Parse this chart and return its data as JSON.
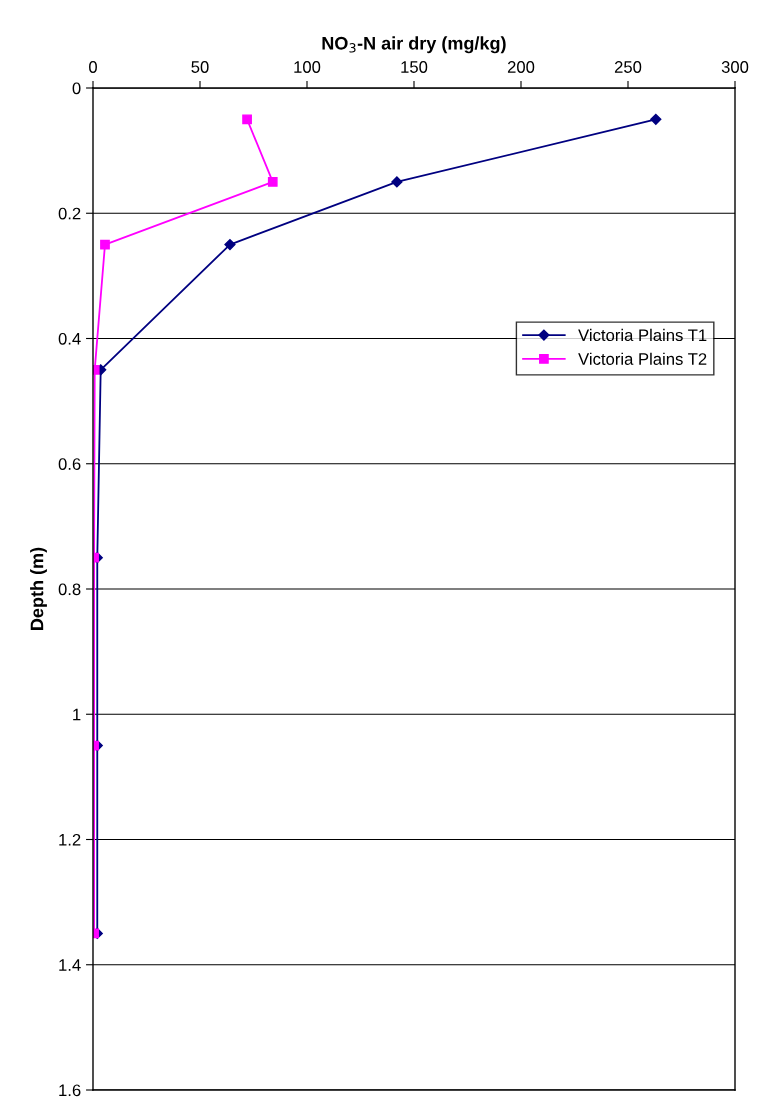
{
  "chart_data": {
    "type": "line",
    "xlabel": "NO$_{3}$-N air dry (mg/kg)",
    "ylabel": "Depth (m)",
    "xlim": [
      0,
      300
    ],
    "xticks": [
      0,
      50,
      100,
      150,
      200,
      250,
      300
    ],
    "ylim": [
      1.6,
      0
    ],
    "yticks": [
      0,
      0.2,
      0.4,
      0.6,
      0.8,
      1,
      1.2,
      1.4,
      1.6
    ],
    "grid": "y",
    "legend": "right",
    "series": [
      {
        "name": "Victoria Plains T1",
        "color": "#000080",
        "marker": "diamond",
        "x": [
          263,
          142,
          64,
          3.6,
          2,
          2,
          2
        ],
        "values": [
          0.05,
          0.15,
          0.25,
          0.45,
          0.75,
          1.05,
          1.35
        ]
      },
      {
        "name": "Victoria Plains T2",
        "color": "#ff00ff",
        "marker": "square",
        "x": [
          72,
          84,
          5.6,
          0.8,
          0.5,
          0.5,
          0.5
        ],
        "values": [
          0.05,
          0.15,
          0.25,
          0.45,
          0.75,
          1.05,
          1.35
        ]
      }
    ]
  }
}
